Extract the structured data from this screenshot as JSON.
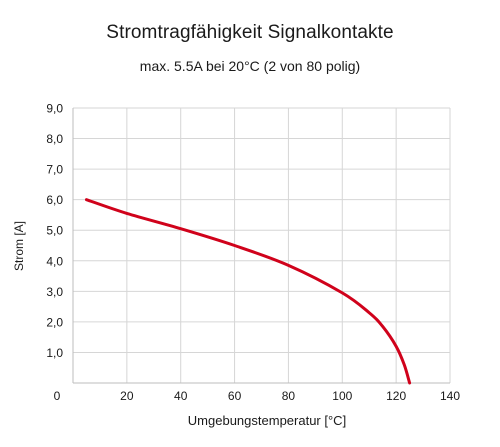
{
  "chart_data": {
    "type": "line",
    "title": "Stromtragfähigkeit Signalkontakte",
    "subtitle": "max. 5.5A bei 20°C (2 von 80 polig)",
    "xlabel": "Umgebungstemperatur [°C]",
    "ylabel": "Strom [A]",
    "xlim": [
      0,
      140
    ],
    "ylim": [
      0,
      9
    ],
    "x_ticks": [
      "0",
      "20",
      "40",
      "60",
      "80",
      "100",
      "120",
      "140"
    ],
    "y_ticks": [
      "1,0",
      "2,0",
      "3,0",
      "4,0",
      "5,0",
      "6,0",
      "7,0",
      "8,0",
      "9,0"
    ],
    "grid": true,
    "series": [
      {
        "color": "#d0021b",
        "x": [
          5,
          20,
          40,
          60,
          80,
          100,
          110,
          115,
          120,
          123,
          125
        ],
        "y": [
          6.0,
          5.55,
          5.05,
          4.5,
          3.85,
          2.95,
          2.3,
          1.85,
          1.2,
          0.6,
          0.0
        ]
      }
    ]
  }
}
